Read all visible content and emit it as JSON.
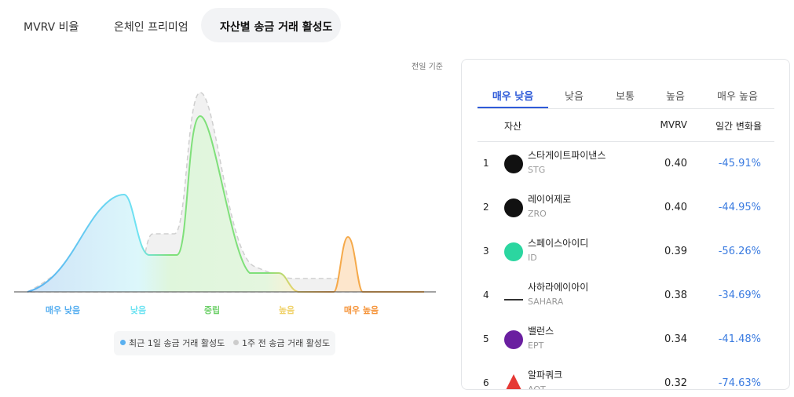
{
  "top_tabs": [
    "MVRV 비율",
    "온체인 프리미엄",
    "자산별 송금 거래 활성도"
  ],
  "chart": {
    "note": "전일 기준",
    "x_labels": [
      "매우 낮음",
      "낮음",
      "중립",
      "높음",
      "매우 높음"
    ],
    "legend": [
      "최근 1일 송금 거래 활성도",
      "1주 전 송금 거래 활성도"
    ]
  },
  "panel": {
    "tabs": [
      "매우 낮음",
      "낮음",
      "보통",
      "높음",
      "매우 높음"
    ],
    "header": [
      "자산",
      "MVRV",
      "일간 변화율"
    ],
    "rows": [
      [
        1,
        "스타게이트파이낸스",
        "STG",
        "0.40",
        "-45.91%"
      ],
      [
        2,
        "레이어제로",
        "ZRO",
        "0.40",
        "-44.95%"
      ],
      [
        3,
        "스페이스아이디",
        "ID",
        "0.39",
        "-56.26%"
      ],
      [
        4,
        "사하라에이아이",
        "SAHARA",
        "0.38",
        "-34.69%"
      ],
      [
        5,
        "밸런스",
        "EPT",
        "0.34",
        "-41.48%"
      ],
      [
        6,
        "알파쿼크",
        "AQT",
        "0.32",
        "-74.63%"
      ]
    ]
  }
}
